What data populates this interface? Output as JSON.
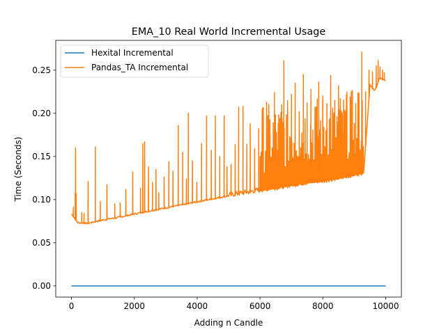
{
  "chart_data": {
    "type": "line",
    "title": "EMA_10 Real World Incremental Usage",
    "xlabel": "Adding n Candle",
    "ylabel": "Time (Seconds)",
    "xlim": [
      -500,
      10500
    ],
    "ylim": [
      -0.013,
      0.2845
    ],
    "x_ticks": [
      0,
      2000,
      4000,
      6000,
      8000,
      10000
    ],
    "x_tick_labels": [
      "0",
      "2000",
      "4000",
      "6000",
      "8000",
      "10000"
    ],
    "y_ticks": [
      0.0,
      0.05,
      0.1,
      0.15,
      0.2,
      0.25
    ],
    "y_tick_labels": [
      "0.00",
      "0.05",
      "0.10",
      "0.15",
      "0.20",
      "0.25"
    ],
    "grid": false,
    "legend": {
      "position": "top-left"
    },
    "series": [
      {
        "name": "Hexital Incremental",
        "color": "#1f77b4",
        "x": [
          0,
          2000,
          4000,
          6000,
          8000,
          10000
        ],
        "y": [
          0.0,
          0.0,
          0.0,
          0.0,
          0.0,
          0.0
        ]
      },
      {
        "name": "Pandas_TA Incremental",
        "color": "#ff7f0e",
        "base_x": [
          0,
          200,
          500,
          1000,
          1500,
          2000,
          3000,
          4000,
          5000,
          5500,
          6000,
          6500,
          7000,
          7500,
          8000,
          8500,
          9000,
          9300,
          9500,
          9650,
          9800,
          10000
        ],
        "base_y": [
          0.083,
          0.073,
          0.072,
          0.076,
          0.079,
          0.083,
          0.09,
          0.097,
          0.104,
          0.107,
          0.11,
          0.113,
          0.116,
          0.119,
          0.121,
          0.124,
          0.128,
          0.131,
          0.233,
          0.225,
          0.24,
          0.238
        ],
        "spikes": [
          {
            "x": 60,
            "y": 0.091
          },
          {
            "x": 120,
            "y": 0.108
          },
          {
            "x": 130,
            "y": 0.16
          },
          {
            "x": 150,
            "y": 0.107
          },
          {
            "x": 330,
            "y": 0.085
          },
          {
            "x": 400,
            "y": 0.084
          },
          {
            "x": 530,
            "y": 0.121
          },
          {
            "x": 760,
            "y": 0.161
          },
          {
            "x": 920,
            "y": 0.098
          },
          {
            "x": 1130,
            "y": 0.117
          },
          {
            "x": 1380,
            "y": 0.095
          },
          {
            "x": 1550,
            "y": 0.096
          },
          {
            "x": 1730,
            "y": 0.112
          },
          {
            "x": 1950,
            "y": 0.132
          },
          {
            "x": 2200,
            "y": 0.113
          },
          {
            "x": 2270,
            "y": 0.165
          },
          {
            "x": 2330,
            "y": 0.167
          },
          {
            "x": 2450,
            "y": 0.138
          },
          {
            "x": 2580,
            "y": 0.12
          },
          {
            "x": 2690,
            "y": 0.135
          },
          {
            "x": 2780,
            "y": 0.108
          },
          {
            "x": 2950,
            "y": 0.126
          },
          {
            "x": 3100,
            "y": 0.144
          },
          {
            "x": 3230,
            "y": 0.133
          },
          {
            "x": 3400,
            "y": 0.186
          },
          {
            "x": 3540,
            "y": 0.155
          },
          {
            "x": 3660,
            "y": 0.124
          },
          {
            "x": 3720,
            "y": 0.2
          },
          {
            "x": 3850,
            "y": 0.145
          },
          {
            "x": 3990,
            "y": 0.12
          },
          {
            "x": 4140,
            "y": 0.165
          },
          {
            "x": 4300,
            "y": 0.197
          },
          {
            "x": 4450,
            "y": 0.157
          },
          {
            "x": 4580,
            "y": 0.197
          },
          {
            "x": 4720,
            "y": 0.15
          },
          {
            "x": 4860,
            "y": 0.197
          },
          {
            "x": 4950,
            "y": 0.138
          },
          {
            "x": 5080,
            "y": 0.141
          },
          {
            "x": 5210,
            "y": 0.164
          },
          {
            "x": 5320,
            "y": 0.207
          },
          {
            "x": 5460,
            "y": 0.208
          },
          {
            "x": 5580,
            "y": 0.164
          },
          {
            "x": 5690,
            "y": 0.188
          },
          {
            "x": 5830,
            "y": 0.159
          },
          {
            "x": 5960,
            "y": 0.182
          },
          {
            "x": 6080,
            "y": 0.206
          },
          {
            "x": 6210,
            "y": 0.213
          },
          {
            "x": 6320,
            "y": 0.177
          },
          {
            "x": 6460,
            "y": 0.224
          },
          {
            "x": 6580,
            "y": 0.188
          },
          {
            "x": 6690,
            "y": 0.21
          },
          {
            "x": 6760,
            "y": 0.261
          },
          {
            "x": 6880,
            "y": 0.205
          },
          {
            "x": 7000,
            "y": 0.222
          },
          {
            "x": 7120,
            "y": 0.235
          },
          {
            "x": 7250,
            "y": 0.202
          },
          {
            "x": 7380,
            "y": 0.245
          },
          {
            "x": 7500,
            "y": 0.212
          },
          {
            "x": 7620,
            "y": 0.228
          },
          {
            "x": 7750,
            "y": 0.207
          },
          {
            "x": 7870,
            "y": 0.236
          },
          {
            "x": 8000,
            "y": 0.22
          },
          {
            "x": 8130,
            "y": 0.211
          },
          {
            "x": 8250,
            "y": 0.244
          },
          {
            "x": 8380,
            "y": 0.215
          },
          {
            "x": 8500,
            "y": 0.232
          },
          {
            "x": 8620,
            "y": 0.2
          },
          {
            "x": 8750,
            "y": 0.221
          },
          {
            "x": 8870,
            "y": 0.219
          },
          {
            "x": 9000,
            "y": 0.188
          },
          {
            "x": 9120,
            "y": 0.224
          },
          {
            "x": 9240,
            "y": 0.271
          },
          {
            "x": 9360,
            "y": 0.225
          },
          {
            "x": 9470,
            "y": 0.25
          },
          {
            "x": 9580,
            "y": 0.248
          },
          {
            "x": 9700,
            "y": 0.255
          },
          {
            "x": 9760,
            "y": 0.261
          },
          {
            "x": 9820,
            "y": 0.254
          },
          {
            "x": 9900,
            "y": 0.25
          },
          {
            "x": 9960,
            "y": 0.247
          }
        ]
      }
    ]
  }
}
